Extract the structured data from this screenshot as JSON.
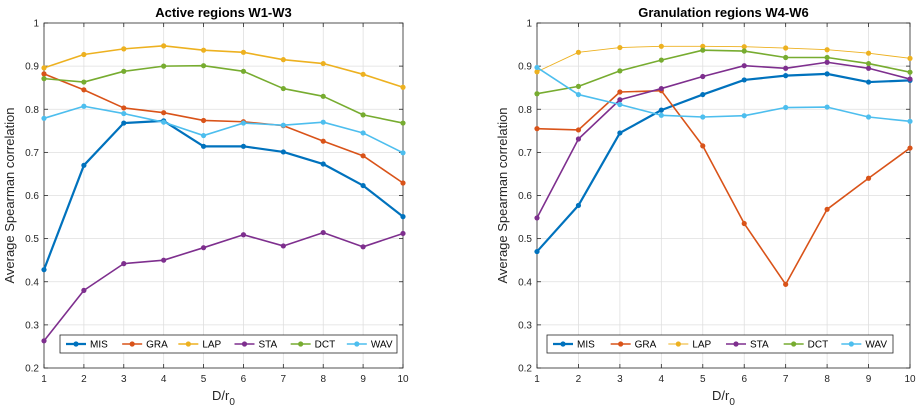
{
  "chart_data": [
    {
      "type": "line",
      "title": "Active regions W1-W3",
      "xlabel_main": "D/r",
      "xlabel_sub": "0",
      "ylabel": "Average Spearman correlation",
      "x": [
        1,
        2,
        3,
        4,
        5,
        6,
        7,
        8,
        9,
        10
      ],
      "xticks": [
        "1",
        "2",
        "3",
        "4",
        "5",
        "6",
        "7",
        "8",
        "9",
        "10"
      ],
      "yticks": [
        "0.2",
        "0.3",
        "0.4",
        "0.5",
        "0.6",
        "0.7",
        "0.8",
        "0.9",
        "1"
      ],
      "xlim": [
        1,
        10
      ],
      "ylim": [
        0.2,
        1.0
      ],
      "grid": true,
      "legend_position": "bottom",
      "series": [
        {
          "name": "MIS",
          "color": "#0072BD",
          "width": 2.2,
          "values": [
            0.428,
            0.67,
            0.768,
            0.773,
            0.714,
            0.714,
            0.701,
            0.673,
            0.623,
            0.551
          ]
        },
        {
          "name": "GRA",
          "color": "#D95319",
          "width": 1.6,
          "values": [
            0.882,
            0.845,
            0.803,
            0.792,
            0.774,
            0.771,
            0.762,
            0.726,
            0.692,
            0.629
          ]
        },
        {
          "name": "LAP",
          "color": "#EDB120",
          "width": 1.6,
          "values": [
            0.896,
            0.927,
            0.94,
            0.947,
            0.937,
            0.932,
            0.915,
            0.906,
            0.881,
            0.851
          ]
        },
        {
          "name": "STA",
          "color": "#7E2F8E",
          "width": 1.6,
          "values": [
            0.263,
            0.38,
            0.442,
            0.45,
            0.479,
            0.509,
            0.483,
            0.514,
            0.481,
            0.512
          ]
        },
        {
          "name": "DCT",
          "color": "#77AC30",
          "width": 1.6,
          "values": [
            0.871,
            0.863,
            0.888,
            0.9,
            0.901,
            0.888,
            0.848,
            0.83,
            0.787,
            0.768
          ]
        },
        {
          "name": "WAV",
          "color": "#4DBEEE",
          "width": 1.6,
          "values": [
            0.779,
            0.807,
            0.79,
            0.77,
            0.739,
            0.768,
            0.763,
            0.77,
            0.745,
            0.699
          ]
        }
      ]
    },
    {
      "type": "line",
      "title": "Granulation regions W4-W6",
      "xlabel_main": "D/r",
      "xlabel_sub": "0",
      "ylabel": "Average Spearman correlation",
      "x": [
        1,
        2,
        3,
        4,
        5,
        6,
        7,
        8,
        9,
        10
      ],
      "xticks": [
        "1",
        "2",
        "3",
        "4",
        "5",
        "6",
        "7",
        "8",
        "9",
        "10"
      ],
      "yticks": [
        "0.2",
        "0.3",
        "0.4",
        "0.5",
        "0.6",
        "0.7",
        "0.8",
        "0.9",
        "1"
      ],
      "xlim": [
        1,
        10
      ],
      "ylim": [
        0.2,
        1.0
      ],
      "grid": true,
      "legend_position": "bottom",
      "series": [
        {
          "name": "MIS",
          "color": "#0072BD",
          "width": 2.2,
          "values": [
            0.47,
            0.577,
            0.745,
            0.798,
            0.834,
            0.868,
            0.878,
            0.882,
            0.863,
            0.867
          ]
        },
        {
          "name": "GRA",
          "color": "#D95319",
          "width": 1.6,
          "values": [
            0.755,
            0.752,
            0.84,
            0.843,
            0.715,
            0.535,
            0.394,
            0.568,
            0.64,
            0.71
          ]
        },
        {
          "name": "LAP",
          "color": "#EDB120",
          "width": 0.9,
          "values": [
            0.887,
            0.932,
            0.943,
            0.946,
            0.946,
            0.945,
            0.942,
            0.938,
            0.93,
            0.918
          ]
        },
        {
          "name": "STA",
          "color": "#7E2F8E",
          "width": 1.6,
          "values": [
            0.548,
            0.731,
            0.822,
            0.848,
            0.876,
            0.901,
            0.895,
            0.909,
            0.895,
            0.87
          ]
        },
        {
          "name": "DCT",
          "color": "#77AC30",
          "width": 1.6,
          "values": [
            0.836,
            0.853,
            0.889,
            0.914,
            0.937,
            0.935,
            0.92,
            0.92,
            0.906,
            0.886
          ]
        },
        {
          "name": "WAV",
          "color": "#4DBEEE",
          "width": 1.6,
          "values": [
            0.897,
            0.834,
            0.811,
            0.786,
            0.782,
            0.785,
            0.804,
            0.805,
            0.782,
            0.772
          ]
        }
      ]
    }
  ]
}
